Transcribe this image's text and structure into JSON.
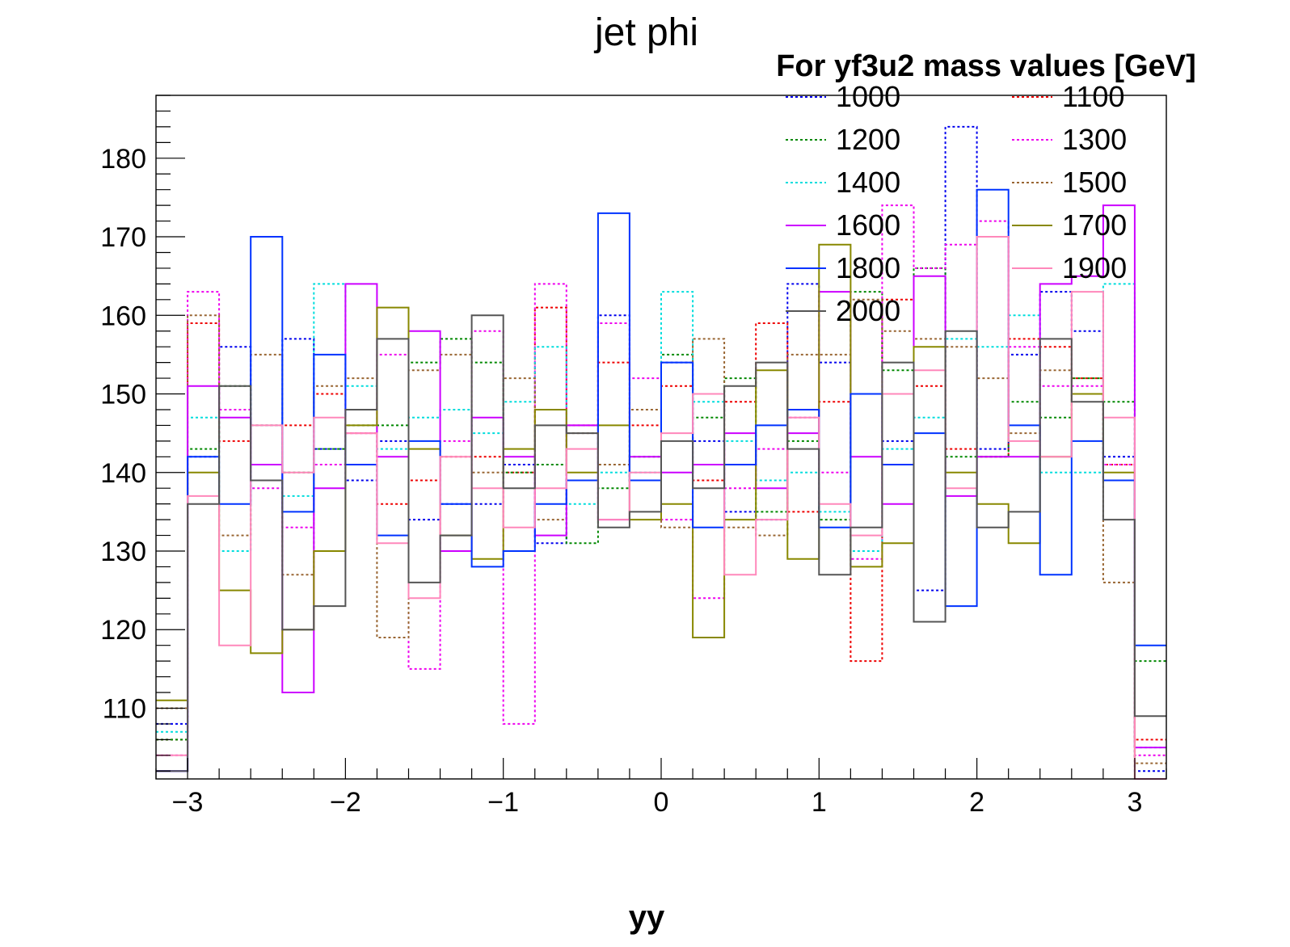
{
  "chart_data": {
    "type": "line",
    "title": "jet phi",
    "xlabel": "yy",
    "ylabel": "",
    "xlim": [
      -3.2,
      3.2
    ],
    "ylim": [
      101,
      188
    ],
    "x_ticks": [
      -3,
      -2,
      -1,
      0,
      1,
      2,
      3
    ],
    "y_ticks": [
      110,
      120,
      130,
      140,
      150,
      160,
      170,
      180
    ],
    "grid": false,
    "legend": {
      "title": "For yf3u2 mass values [GeV]",
      "placement": "top-right",
      "columns": 2
    },
    "bin_edges": [
      -3.2,
      -3.0,
      -2.8,
      -2.6,
      -2.4,
      -2.2,
      -2.0,
      -1.8,
      -1.6,
      -1.4,
      -1.2,
      -1.0,
      -0.8,
      -0.6,
      -0.4,
      -0.2,
      0.0,
      0.2,
      0.4,
      0.6,
      0.8,
      1.0,
      1.2,
      1.4,
      1.6,
      1.8,
      2.0,
      2.2,
      2.4,
      2.6,
      2.8,
      3.0,
      3.2
    ],
    "series": [
      {
        "name": "1000",
        "color": "#0000ee",
        "dashed": true,
        "values": [
          108,
          142,
          156,
          139,
          157,
          143,
          139,
          144,
          134,
          136,
          136,
          141,
          131,
          139,
          160,
          139,
          154,
          144,
          135,
          134,
          164,
          154,
          150,
          144,
          125,
          184,
          143,
          155,
          163,
          158,
          142,
          102
        ]
      },
      {
        "name": "1100",
        "color": "#ee0000",
        "dashed": true,
        "values": [
          106,
          159,
          144,
          146,
          146,
          150,
          145,
          136,
          139,
          142,
          142,
          140,
          161,
          146,
          154,
          146,
          151,
          139,
          149,
          159,
          135,
          149,
          116,
          162,
          151,
          143,
          142,
          157,
          156,
          152,
          141,
          106
        ]
      },
      {
        "name": "1200",
        "color": "#008800",
        "dashed": true,
        "values": [
          106,
          143,
          151,
          141,
          140,
          143,
          146,
          146,
          154,
          157,
          154,
          140,
          141,
          131,
          138,
          142,
          155,
          147,
          152,
          135,
          144,
          134,
          163,
          153,
          166,
          142,
          142,
          149,
          147,
          152,
          149,
          116
        ]
      },
      {
        "name": "1300",
        "color": "#ee00ee",
        "dashed": true,
        "values": [
          104,
          163,
          148,
          138,
          133,
          141,
          145,
          155,
          115,
          144,
          158,
          108,
          164,
          146,
          159,
          152,
          134,
          124,
          138,
          143,
          147,
          140,
          129,
          174,
          166,
          169,
          172,
          156,
          151,
          151,
          141,
          104
        ]
      },
      {
        "name": "1400",
        "color": "#00dddd",
        "dashed": true,
        "values": [
          107,
          147,
          130,
          146,
          137,
          164,
          151,
          143,
          147,
          148,
          145,
          149,
          156,
          136,
          140,
          140,
          163,
          149,
          144,
          139,
          140,
          135,
          130,
          143,
          147,
          157,
          156,
          160,
          140,
          140,
          164,
          105
        ]
      },
      {
        "name": "1500",
        "color": "#996633",
        "dashed": true,
        "values": [
          110,
          160,
          132,
          155,
          127,
          151,
          152,
          119,
          153,
          155,
          140,
          152,
          134,
          145,
          141,
          148,
          133,
          157,
          133,
          132,
          155,
          155,
          162,
          158,
          157,
          156,
          152,
          145,
          153,
          150,
          126,
          103
        ]
      },
      {
        "name": "1600",
        "color": "#cc00ff",
        "dashed": false,
        "values": [
          102,
          151,
          147,
          141,
          112,
          138,
          164,
          142,
          158,
          130,
          147,
          142,
          132,
          146,
          134,
          142,
          140,
          141,
          145,
          138,
          145,
          163,
          142,
          136,
          165,
          137,
          142,
          142,
          164,
          165,
          174,
          105
        ]
      },
      {
        "name": "1700",
        "color": "#888800",
        "dashed": false,
        "values": [
          111,
          140,
          125,
          117,
          120,
          130,
          146,
          161,
          143,
          132,
          129,
          143,
          148,
          140,
          146,
          134,
          136,
          119,
          134,
          153,
          129,
          169,
          128,
          131,
          156,
          140,
          136,
          131,
          142,
          150,
          140,
          101
        ]
      },
      {
        "name": "1800",
        "color": "#0033ff",
        "dashed": false,
        "values": [
          102,
          142,
          136,
          170,
          135,
          155,
          141,
          132,
          144,
          136,
          128,
          130,
          136,
          139,
          173,
          139,
          154,
          133,
          141,
          146,
          148,
          133,
          150,
          141,
          145,
          123,
          176,
          146,
          127,
          144,
          139,
          118
        ]
      },
      {
        "name": "1900",
        "color": "#ff88bb",
        "dashed": false,
        "values": [
          104,
          137,
          118,
          146,
          140,
          147,
          145,
          131,
          124,
          142,
          138,
          133,
          138,
          143,
          134,
          140,
          145,
          150,
          127,
          134,
          147,
          136,
          132,
          150,
          153,
          138,
          170,
          144,
          142,
          163,
          147,
          101
        ]
      },
      {
        "name": "2000",
        "color": "#555555",
        "dashed": false,
        "values": [
          102,
          136,
          151,
          139,
          120,
          123,
          148,
          157,
          126,
          132,
          160,
          138,
          146,
          145,
          133,
          135,
          144,
          138,
          151,
          154,
          143,
          127,
          133,
          154,
          121,
          158,
          133,
          135,
          157,
          149,
          134,
          109
        ]
      }
    ]
  }
}
